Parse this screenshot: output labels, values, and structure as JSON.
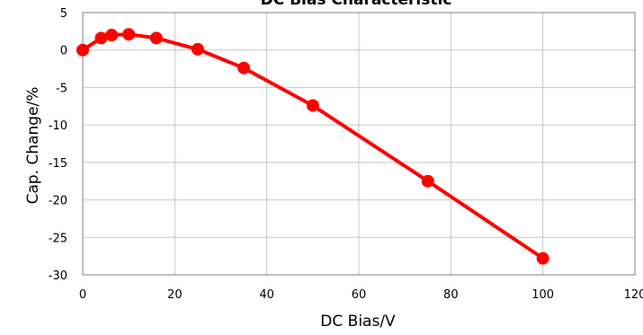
{
  "chart_data": {
    "type": "line",
    "title": "DC Bias Characteristic",
    "xlabel": "DC Bias/V",
    "ylabel": "Cap. Change/%",
    "xlim": [
      0,
      120
    ],
    "ylim": [
      -30,
      5
    ],
    "x_ticks": [
      0,
      20,
      40,
      60,
      80,
      100,
      120
    ],
    "y_ticks": [
      5,
      0,
      -5,
      -10,
      -15,
      -20,
      -25,
      -30
    ],
    "grid": true,
    "legend": "none",
    "series": [
      {
        "x": [
          0,
          4,
          6.3,
          10,
          16,
          25,
          35,
          50,
          75,
          100
        ],
        "y": [
          0,
          1.6,
          2.0,
          2.1,
          1.6,
          0.1,
          -2.4,
          -7.4,
          -17.5,
          -27.8
        ],
        "color": "#ff0000"
      }
    ]
  }
}
